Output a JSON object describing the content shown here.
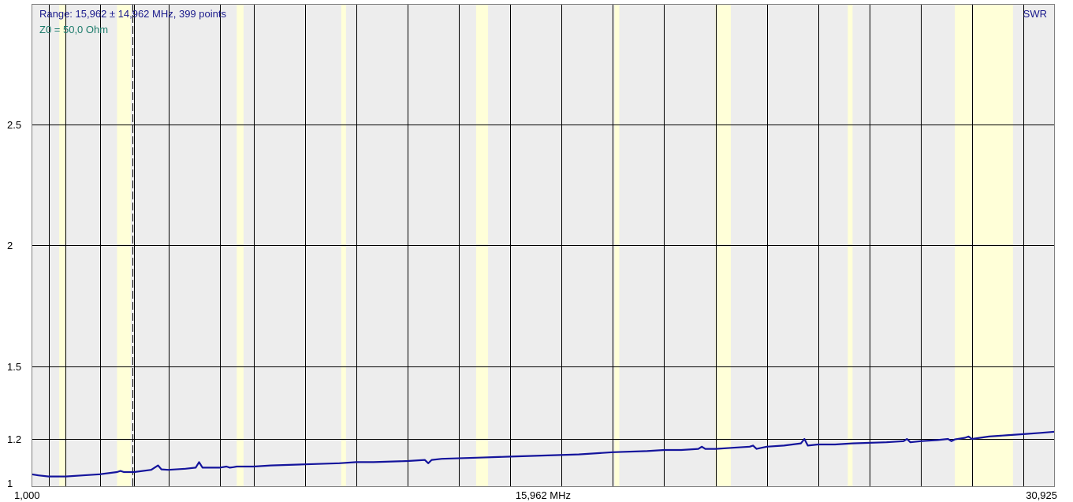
{
  "header": {
    "range_text": "Range: 15,962 ± 14,962 MHz, 399 points",
    "z0_text": "Z0 = 50,0 Ohm",
    "mode_label": "SWR"
  },
  "colors": {
    "plot_background": "#ededed",
    "band_highlight": "#ffffd8",
    "grid_line": "#000000",
    "trace": "#14149c",
    "header_text": "#1a1a8c",
    "z0_text": "#1a7a6a"
  },
  "chart_data": {
    "type": "line",
    "title": "",
    "xlabel": "",
    "ylabel": "",
    "x_unit": "MHz",
    "xlim": [
      1.0,
      30.925
    ],
    "ylim": [
      1.0,
      3.0
    ],
    "y_ticks": [
      {
        "value": 1.0,
        "label": "1"
      },
      {
        "value": 1.2,
        "label": "1.2"
      },
      {
        "value": 1.5,
        "label": "1.5"
      },
      {
        "value": 2.0,
        "label": "2"
      },
      {
        "value": 2.5,
        "label": "2.5"
      }
    ],
    "x_tick_labels": [
      {
        "value": 1.0,
        "label": "1,000"
      },
      {
        "value": 15.962,
        "label": "15,962 MHz"
      },
      {
        "value": 30.925,
        "label": "30,925"
      }
    ],
    "x_gridlines_mhz": [
      1.5,
      2.0,
      3.0,
      4.0,
      5.0,
      6.5,
      7.5,
      9.0,
      10.5,
      12.0,
      13.5,
      15.0,
      16.5,
      18.0,
      19.5,
      21.0,
      22.5,
      24.0,
      25.5,
      27.0,
      28.5,
      30.0
    ],
    "marker_mhz": 3.95,
    "highlighted_bands": [
      {
        "from": 1.81,
        "to": 2.0
      },
      {
        "from": 3.5,
        "to": 3.9
      },
      {
        "from": 7.0,
        "to": 7.2
      },
      {
        "from": 10.1,
        "to": 10.15
      },
      {
        "from": 14.0,
        "to": 14.35
      },
      {
        "from": 18.068,
        "to": 18.168
      },
      {
        "from": 21.0,
        "to": 21.45
      },
      {
        "from": 24.89,
        "to": 24.99
      },
      {
        "from": 28.0,
        "to": 29.7
      }
    ],
    "grid": true,
    "legend": "none",
    "series": [
      {
        "name": "SWR",
        "x": [
          1.0,
          1.2,
          1.5,
          2.0,
          2.5,
          3.0,
          3.5,
          3.6,
          3.7,
          4.0,
          4.5,
          4.7,
          4.8,
          5.0,
          5.5,
          5.8,
          5.9,
          6.0,
          6.5,
          6.7,
          6.8,
          6.9,
          7.0,
          7.5,
          8.0,
          9.0,
          10.0,
          10.5,
          11.0,
          12.0,
          12.5,
          12.6,
          12.7,
          13.0,
          14.0,
          15.0,
          16.0,
          17.0,
          18.0,
          19.0,
          19.5,
          20.0,
          20.5,
          20.6,
          20.7,
          21.0,
          21.5,
          22.0,
          22.1,
          22.2,
          22.5,
          23.0,
          23.5,
          23.6,
          23.7,
          24.0,
          24.5,
          25.0,
          26.0,
          26.5,
          26.6,
          26.7,
          27.0,
          27.5,
          27.8,
          27.9,
          28.0,
          28.3,
          28.4,
          28.5,
          29.0,
          29.5,
          30.0,
          30.5,
          30.925
        ],
        "values": [
          1.04,
          1.035,
          1.03,
          1.03,
          1.035,
          1.04,
          1.05,
          1.055,
          1.05,
          1.05,
          1.06,
          1.08,
          1.062,
          1.06,
          1.065,
          1.07,
          1.095,
          1.07,
          1.07,
          1.075,
          1.07,
          1.072,
          1.075,
          1.075,
          1.08,
          1.085,
          1.09,
          1.095,
          1.095,
          1.1,
          1.105,
          1.09,
          1.105,
          1.11,
          1.115,
          1.12,
          1.125,
          1.13,
          1.14,
          1.145,
          1.15,
          1.15,
          1.155,
          1.165,
          1.155,
          1.155,
          1.16,
          1.165,
          1.17,
          1.155,
          1.165,
          1.17,
          1.18,
          1.2,
          1.17,
          1.175,
          1.175,
          1.18,
          1.185,
          1.19,
          1.2,
          1.185,
          1.19,
          1.195,
          1.2,
          1.19,
          1.198,
          1.205,
          1.21,
          1.2,
          1.21,
          1.215,
          1.22,
          1.225,
          1.23
        ]
      }
    ]
  }
}
